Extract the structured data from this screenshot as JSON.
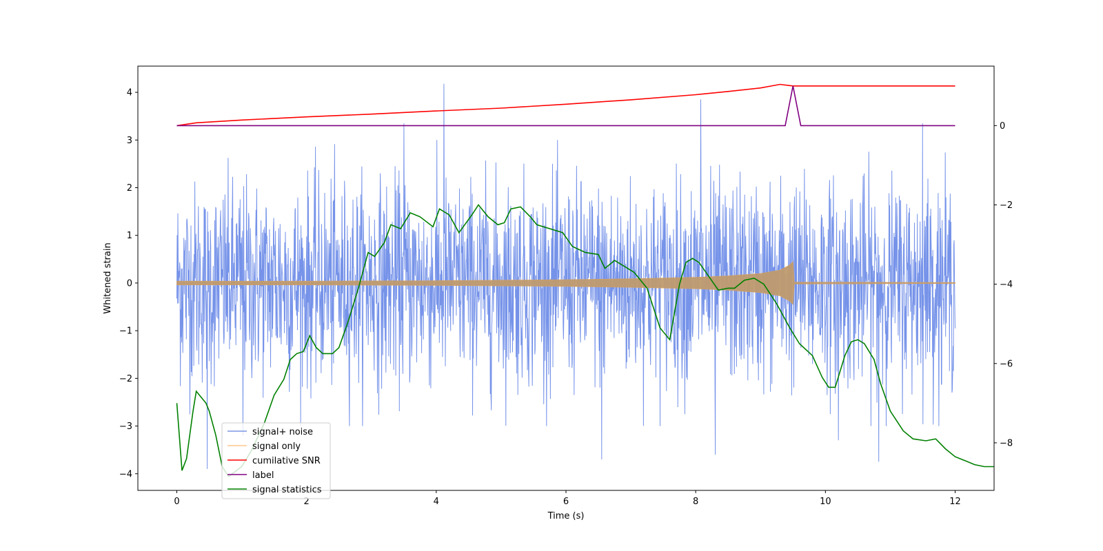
{
  "chart_data": {
    "type": "line",
    "xlabel": "Time (s)",
    "ylabel": "Whitened strain",
    "y2label": "",
    "xlim": [
      -0.6,
      12.6
    ],
    "ylim": [
      -4.35,
      4.55
    ],
    "y2lim": [
      -9.2,
      1.5
    ],
    "x_ticks": [
      0,
      2,
      4,
      6,
      8,
      10,
      12
    ],
    "y_ticks": [
      -4,
      -3,
      -2,
      -1,
      0,
      1,
      2,
      3,
      4
    ],
    "y2_ticks": [
      -8,
      -6,
      -4,
      -2,
      0
    ],
    "grid": false,
    "legend_location": "lower left",
    "series": [
      {
        "name": "signal+ noise",
        "axis": "left",
        "color": "#4169e1",
        "description": "whitened noisy strain, approx. band -2 to 2 with spikes",
        "x_range": [
          0,
          12
        ],
        "spikes": [
          {
            "x": 0.47,
            "y": -3.9
          },
          {
            "x": 1.02,
            "y": -3.2
          },
          {
            "x": 3.5,
            "y": 3.35
          },
          {
            "x": 4.12,
            "y": 4.18
          },
          {
            "x": 6.55,
            "y": -3.7
          },
          {
            "x": 8.08,
            "y": 3.85
          },
          {
            "x": 8.3,
            "y": -3.6
          },
          {
            "x": 10.2,
            "y": -3.3
          },
          {
            "x": 10.82,
            "y": -3.75
          },
          {
            "x": 11.5,
            "y": 3.35
          }
        ]
      },
      {
        "name": "signal only",
        "axis": "left",
        "color": "#ffa500",
        "description": "chirp envelope growing until merger",
        "envelope": [
          [
            0,
            0.04
          ],
          [
            2,
            0.04
          ],
          [
            4,
            0.05
          ],
          [
            6,
            0.07
          ],
          [
            7,
            0.09
          ],
          [
            8,
            0.12
          ],
          [
            8.5,
            0.15
          ],
          [
            9,
            0.2
          ],
          [
            9.3,
            0.27
          ],
          [
            9.45,
            0.38
          ],
          [
            9.5,
            0.45
          ],
          [
            9.52,
            0.02
          ],
          [
            12,
            0.01
          ]
        ]
      },
      {
        "name": "cumilative SNR",
        "axis": "right",
        "color": "#ff0000",
        "points": [
          [
            0,
            0.0
          ],
          [
            0.3,
            0.07
          ],
          [
            1,
            0.14
          ],
          [
            2,
            0.22
          ],
          [
            3,
            0.29
          ],
          [
            4,
            0.37
          ],
          [
            5,
            0.44
          ],
          [
            6,
            0.54
          ],
          [
            7,
            0.65
          ],
          [
            8,
            0.78
          ],
          [
            8.5,
            0.86
          ],
          [
            9,
            0.95
          ],
          [
            9.3,
            1.04
          ],
          [
            9.5,
            1.0
          ],
          [
            12,
            1.0
          ]
        ]
      },
      {
        "name": "label",
        "axis": "right",
        "color": "#800080",
        "points": [
          [
            0,
            0
          ],
          [
            9.38,
            0
          ],
          [
            9.5,
            1.0
          ],
          [
            9.62,
            0
          ],
          [
            12,
            0
          ]
        ]
      },
      {
        "name": "signal statistics",
        "axis": "right",
        "color": "#008000",
        "points": [
          [
            0,
            -7.0
          ],
          [
            0.08,
            -8.7
          ],
          [
            0.15,
            -8.4
          ],
          [
            0.25,
            -7.2
          ],
          [
            0.3,
            -6.7
          ],
          [
            0.45,
            -7.0
          ],
          [
            0.5,
            -7.2
          ],
          [
            0.6,
            -7.8
          ],
          [
            0.7,
            -8.6
          ],
          [
            0.8,
            -8.85
          ],
          [
            1.0,
            -8.6
          ],
          [
            1.15,
            -8.2
          ],
          [
            1.35,
            -7.5
          ],
          [
            1.5,
            -6.8
          ],
          [
            1.65,
            -6.4
          ],
          [
            1.75,
            -5.9
          ],
          [
            1.85,
            -5.75
          ],
          [
            1.95,
            -5.7
          ],
          [
            2.05,
            -5.3
          ],
          [
            2.15,
            -5.6
          ],
          [
            2.25,
            -5.75
          ],
          [
            2.4,
            -5.75
          ],
          [
            2.5,
            -5.6
          ],
          [
            2.65,
            -4.9
          ],
          [
            2.8,
            -4.1
          ],
          [
            2.95,
            -3.2
          ],
          [
            3.05,
            -3.3
          ],
          [
            3.2,
            -2.95
          ],
          [
            3.3,
            -2.5
          ],
          [
            3.45,
            -2.6
          ],
          [
            3.6,
            -2.2
          ],
          [
            3.75,
            -2.3
          ],
          [
            3.95,
            -2.55
          ],
          [
            4.05,
            -2.1
          ],
          [
            4.2,
            -2.25
          ],
          [
            4.35,
            -2.7
          ],
          [
            4.55,
            -2.25
          ],
          [
            4.65,
            -2.0
          ],
          [
            4.8,
            -2.3
          ],
          [
            4.95,
            -2.5
          ],
          [
            5.05,
            -2.45
          ],
          [
            5.15,
            -2.1
          ],
          [
            5.3,
            -2.05
          ],
          [
            5.45,
            -2.3
          ],
          [
            5.55,
            -2.5
          ],
          [
            5.65,
            -2.55
          ],
          [
            5.85,
            -2.65
          ],
          [
            5.95,
            -2.7
          ],
          [
            6.1,
            -3.05
          ],
          [
            6.3,
            -3.2
          ],
          [
            6.5,
            -3.25
          ],
          [
            6.6,
            -3.6
          ],
          [
            6.75,
            -3.4
          ],
          [
            6.9,
            -3.55
          ],
          [
            7.05,
            -3.7
          ],
          [
            7.25,
            -4.1
          ],
          [
            7.45,
            -5.1
          ],
          [
            7.6,
            -5.4
          ],
          [
            7.75,
            -4.0
          ],
          [
            7.85,
            -3.45
          ],
          [
            7.95,
            -3.35
          ],
          [
            8.05,
            -3.45
          ],
          [
            8.2,
            -3.8
          ],
          [
            8.35,
            -4.15
          ],
          [
            8.5,
            -4.1
          ],
          [
            8.6,
            -4.1
          ],
          [
            8.75,
            -3.9
          ],
          [
            8.9,
            -3.85
          ],
          [
            9.05,
            -4.0
          ],
          [
            9.25,
            -4.5
          ],
          [
            9.45,
            -5.1
          ],
          [
            9.6,
            -5.5
          ],
          [
            9.8,
            -5.8
          ],
          [
            9.95,
            -6.35
          ],
          [
            10.05,
            -6.6
          ],
          [
            10.15,
            -6.6
          ],
          [
            10.3,
            -5.8
          ],
          [
            10.4,
            -5.45
          ],
          [
            10.5,
            -5.4
          ],
          [
            10.6,
            -5.5
          ],
          [
            10.75,
            -5.9
          ],
          [
            10.85,
            -6.5
          ],
          [
            11.0,
            -7.2
          ],
          [
            11.2,
            -7.7
          ],
          [
            11.35,
            -7.9
          ],
          [
            11.55,
            -7.95
          ],
          [
            11.7,
            -7.9
          ],
          [
            11.85,
            -8.15
          ],
          [
            12.0,
            -8.35
          ],
          [
            12.15,
            -8.45
          ],
          [
            12.3,
            -8.55
          ],
          [
            12.45,
            -8.6
          ],
          [
            12.55,
            -8.6
          ],
          [
            12.6,
            -8.6
          ]
        ]
      }
    ]
  }
}
